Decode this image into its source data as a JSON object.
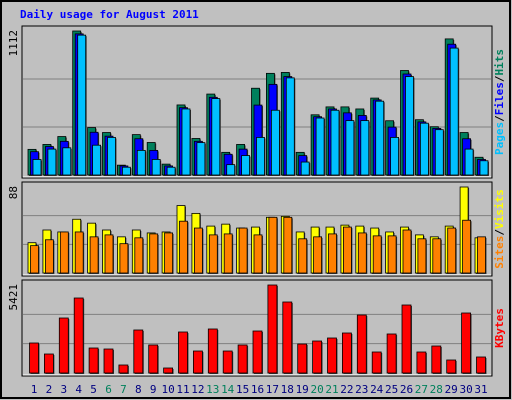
{
  "chart_data": [
    {
      "type": "bar",
      "title": "Daily usage for August 2011",
      "ylim": [
        0,
        1112
      ],
      "yticks": [
        1112
      ],
      "legend_separator": "/",
      "series": [
        {
          "name": "Hits",
          "color": "#00805c",
          "values": [
            198,
            236,
            297,
            1112,
            366,
            328,
            76,
            312,
            251,
            84,
            541,
            282,
            625,
            175,
            236,
            670,
            785,
            792,
            175,
            465,
            526,
            526,
            510,
            594,
            419,
            807,
            427,
            373,
            1051,
            328,
            137
          ]
        },
        {
          "name": "Files",
          "color": "#0000ff",
          "values": [
            180,
            220,
            260,
            1090,
            330,
            300,
            70,
            280,
            190,
            70,
            520,
            260,
            600,
            160,
            200,
            540,
            700,
            760,
            150,
            450,
            510,
            480,
            460,
            580,
            370,
            780,
            410,
            360,
            1010,
            280,
            120
          ]
        },
        {
          "name": "Pages",
          "color": "#00c0ff",
          "values": [
            120,
            200,
            210,
            1080,
            230,
            290,
            60,
            190,
            120,
            60,
            510,
            250,
            590,
            80,
            150,
            290,
            500,
            750,
            100,
            440,
            500,
            420,
            420,
            570,
            290,
            760,
            400,
            350,
            980,
            200,
            110
          ]
        }
      ]
    },
    {
      "type": "bar",
      "ylim": [
        0,
        88
      ],
      "yticks": [
        88
      ],
      "legend_separator": "/",
      "series": [
        {
          "name": "Visits",
          "color": "#ffff00",
          "values": [
            31,
            44,
            42,
            55,
            51,
            44,
            37,
            44,
            41,
            42,
            69,
            61,
            48,
            50,
            46,
            47,
            57,
            58,
            42,
            47,
            47,
            49,
            48,
            46,
            42,
            47,
            39,
            37,
            48,
            88,
            36
          ]
        },
        {
          "name": "Sites",
          "color": "#ff8000",
          "values": [
            28,
            34,
            42,
            42,
            37,
            39,
            30,
            36,
            40,
            41,
            53,
            46,
            39,
            40,
            46,
            39,
            57,
            57,
            35,
            37,
            40,
            47,
            41,
            38,
            38,
            44,
            35,
            35,
            46,
            54,
            37
          ]
        }
      ]
    },
    {
      "type": "bar",
      "ylim": [
        0,
        5421
      ],
      "yticks": [
        5421
      ],
      "series": [
        {
          "name": "KBytes",
          "color": "#ff0000",
          "values": [
            1848,
            1170,
            3388,
            4620,
            1540,
            1478,
            493,
            2649,
            1725,
            308,
            2526,
            1355,
            2711,
            1355,
            1725,
            2587,
            5421,
            4374,
            1786,
            1971,
            2156,
            2464,
            3573,
            1294,
            2403,
            4189,
            1294,
            1663,
            801,
            3696,
            986
          ]
        }
      ],
      "categories": [
        "1",
        "2",
        "3",
        "4",
        "5",
        "6",
        "7",
        "8",
        "9",
        "10",
        "11",
        "12",
        "13",
        "14",
        "15",
        "16",
        "17",
        "18",
        "19",
        "20",
        "21",
        "22",
        "23",
        "24",
        "25",
        "26",
        "27",
        "28",
        "29",
        "30",
        "31"
      ],
      "category_colors": [
        "#000080",
        "#000080",
        "#000080",
        "#000080",
        "#000080",
        "#00805c",
        "#00805c",
        "#000080",
        "#000080",
        "#000080",
        "#000080",
        "#000080",
        "#00805c",
        "#00805c",
        "#000080",
        "#000080",
        "#000080",
        "#000080",
        "#000080",
        "#00805c",
        "#00805c",
        "#000080",
        "#000080",
        "#000080",
        "#000080",
        "#000080",
        "#00805c",
        "#00805c",
        "#000080",
        "#000080",
        "#000080"
      ]
    }
  ]
}
